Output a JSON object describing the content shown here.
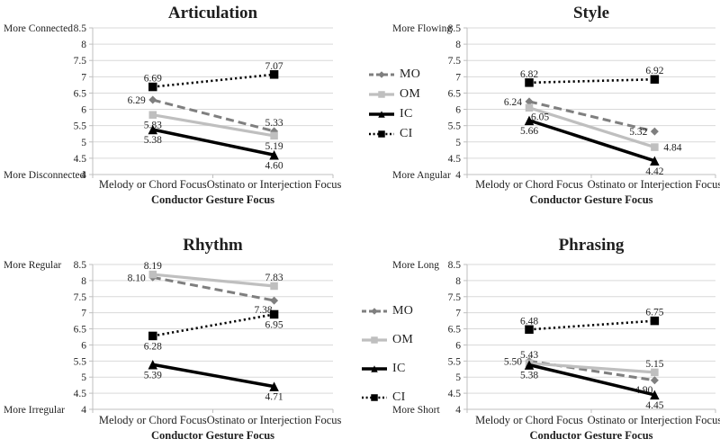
{
  "figure": {
    "background": "#ffffff",
    "text_color": "#1f1f1f",
    "gridline_color": "#d9d9d9",
    "axis_color": "#bfbfbf"
  },
  "legend": {
    "items": [
      {
        "label": "MO",
        "color": "#7f7f7f",
        "line": "dashed",
        "marker": "diamond"
      },
      {
        "label": "OM",
        "color": "#bfbfbf",
        "line": "solid",
        "marker": "square"
      },
      {
        "label": "IC",
        "color": "#000000",
        "line": "solid",
        "marker": "triangle"
      },
      {
        "label": "CI",
        "color": "#000000",
        "line": "dotted",
        "marker": "square"
      }
    ]
  },
  "chart_data": [
    {
      "type": "line",
      "title": "Articulation",
      "y_axis_top_label": "More Connected",
      "y_axis_bottom_label": "More Disconnected",
      "xlabel": "Conductor Gesture Focus",
      "categories": [
        "Melody or Chord Focus",
        "Ostinato or Interjection Focus"
      ],
      "ylim": [
        4,
        8.5
      ],
      "ytick_step": 0.5,
      "grid": true,
      "series": [
        {
          "name": "MO",
          "values": [
            6.29,
            5.33
          ],
          "label_positions": [
            "left",
            "above"
          ]
        },
        {
          "name": "OM",
          "values": [
            5.83,
            5.19
          ],
          "label_positions": [
            "below",
            "below"
          ]
        },
        {
          "name": "IC",
          "values": [
            5.38,
            4.6
          ],
          "label_positions": [
            "below",
            "below"
          ]
        },
        {
          "name": "CI",
          "values": [
            6.69,
            7.07
          ],
          "label_positions": [
            "above",
            "above"
          ]
        }
      ]
    },
    {
      "type": "line",
      "title": "Style",
      "y_axis_top_label": "More Flowing",
      "y_axis_bottom_label": "More Angular",
      "xlabel": "Conductor Gesture Focus",
      "categories": [
        "Melody or Chord Focus",
        "Ostinato or Interjection Focus"
      ],
      "ylim": [
        4,
        8.5
      ],
      "ytick_step": 0.5,
      "grid": true,
      "series": [
        {
          "name": "MO",
          "values": [
            6.24,
            5.32
          ],
          "label_positions": [
            "left",
            "left"
          ]
        },
        {
          "name": "OM",
          "values": [
            6.05,
            4.84
          ],
          "label_positions": [
            "belowright",
            "right"
          ]
        },
        {
          "name": "IC",
          "values": [
            5.66,
            4.42
          ],
          "label_positions": [
            "below",
            "below"
          ]
        },
        {
          "name": "CI",
          "values": [
            6.82,
            6.92
          ],
          "label_positions": [
            "above",
            "above"
          ]
        }
      ]
    },
    {
      "type": "line",
      "title": "Rhythm",
      "y_axis_top_label": "More Regular",
      "y_axis_bottom_label": "More Irregular",
      "xlabel": "Conductor Gesture Focus",
      "categories": [
        "Melody or Chord Focus",
        "Ostinato or Interjection Focus"
      ],
      "ylim": [
        4,
        8.5
      ],
      "ytick_step": 0.5,
      "grid": true,
      "series": [
        {
          "name": "MO",
          "values": [
            8.1,
            7.38
          ],
          "label_positions": [
            "left",
            "belowleft"
          ]
        },
        {
          "name": "OM",
          "values": [
            8.19,
            7.83
          ],
          "label_positions": [
            "above",
            "above"
          ]
        },
        {
          "name": "IC",
          "values": [
            5.39,
            4.71
          ],
          "label_positions": [
            "below",
            "below"
          ]
        },
        {
          "name": "CI",
          "values": [
            6.28,
            6.95
          ],
          "label_positions": [
            "below",
            "below"
          ]
        }
      ]
    },
    {
      "type": "line",
      "title": "Phrasing",
      "y_axis_top_label": "More Long",
      "y_axis_bottom_label": "More Short",
      "xlabel": "Conductor Gesture Focus",
      "categories": [
        "Melody or Chord Focus",
        "Ostinato or Interjection Focus"
      ],
      "ylim": [
        4,
        8.5
      ],
      "ytick_step": 0.5,
      "grid": true,
      "series": [
        {
          "name": "MO",
          "values": [
            5.5,
            4.9
          ],
          "label_positions": [
            "left",
            "belowleft"
          ]
        },
        {
          "name": "OM",
          "values": [
            5.43,
            5.15
          ],
          "label_positions": [
            "above",
            "above"
          ]
        },
        {
          "name": "IC",
          "values": [
            5.38,
            4.45
          ],
          "label_positions": [
            "below",
            "below"
          ]
        },
        {
          "name": "CI",
          "values": [
            6.48,
            6.75
          ],
          "label_positions": [
            "above",
            "above"
          ]
        }
      ]
    }
  ]
}
